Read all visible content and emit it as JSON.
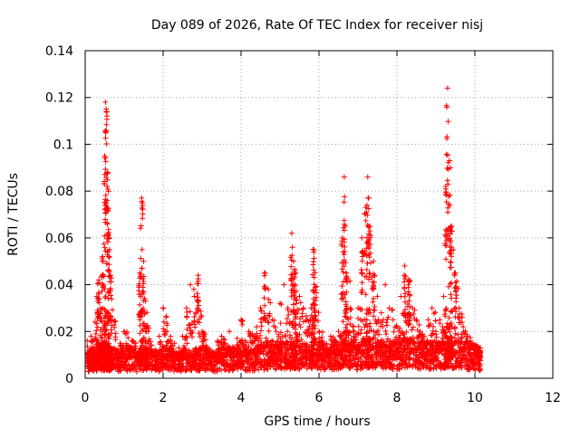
{
  "chart_data": {
    "type": "scatter",
    "title": "Day 089 of 2026, Rate Of TEC Index for receiver nisj",
    "xlabel": "GPS time / hours",
    "ylabel": "ROTI / TECUs",
    "xlim": [
      0,
      12
    ],
    "ylim": [
      0,
      0.14
    ],
    "xticks": [
      0,
      2,
      4,
      6,
      8,
      10,
      12
    ],
    "xtick_labels": [
      "0",
      "2",
      "4",
      "6",
      "8",
      "10",
      "12"
    ],
    "yticks": [
      0,
      0.02,
      0.04,
      0.06,
      0.08,
      0.1,
      0.12,
      0.14
    ],
    "ytick_labels": [
      "0",
      "0.02",
      "0.04",
      "0.06",
      "0.08",
      "0.1",
      "0.12",
      "0.14"
    ],
    "grid": true,
    "marker": "+",
    "color": "#ff0000",
    "series": [
      {
        "name": "ROTI",
        "x": [
          0.05,
          0.1,
          0.15,
          0.2,
          0.25,
          0.3,
          0.35,
          0.4,
          0.45,
          0.5,
          0.52,
          0.55,
          0.58,
          0.6,
          0.65,
          0.7,
          0.8,
          0.9,
          1.0,
          1.1,
          1.2,
          1.3,
          1.4,
          1.45,
          1.5,
          1.55,
          1.6,
          1.7,
          1.8,
          1.9,
          2.0,
          2.1,
          2.2,
          2.3,
          2.4,
          2.5,
          2.6,
          2.7,
          2.8,
          2.9,
          3.0,
          3.1,
          3.2,
          3.3,
          3.4,
          3.5,
          3.6,
          3.7,
          3.8,
          3.9,
          4.0,
          4.1,
          4.2,
          4.3,
          4.4,
          4.5,
          4.6,
          4.7,
          4.8,
          4.9,
          5.0,
          5.1,
          5.2,
          5.3,
          5.35,
          5.4,
          5.5,
          5.6,
          5.7,
          5.8,
          5.85,
          5.9,
          6.0,
          6.1,
          6.2,
          6.3,
          6.4,
          6.5,
          6.6,
          6.65,
          6.7,
          6.8,
          6.9,
          7.0,
          7.1,
          7.2,
          7.25,
          7.3,
          7.4,
          7.5,
          7.6,
          7.7,
          7.8,
          7.9,
          8.0,
          8.1,
          8.2,
          8.3,
          8.4,
          8.5,
          8.6,
          8.7,
          8.8,
          8.9,
          9.0,
          9.1,
          9.2,
          9.25,
          9.3,
          9.35,
          9.4,
          9.5,
          9.6,
          9.7,
          9.8,
          9.9,
          10.0,
          10.1
        ],
        "y": [
          0.016,
          0.012,
          0.018,
          0.009,
          0.024,
          0.035,
          0.042,
          0.03,
          0.052,
          0.095,
          0.118,
          0.114,
          0.088,
          0.061,
          0.044,
          0.025,
          0.012,
          0.015,
          0.02,
          0.014,
          0.016,
          0.011,
          0.045,
          0.077,
          0.05,
          0.033,
          0.022,
          0.014,
          0.012,
          0.018,
          0.03,
          0.02,
          0.015,
          0.011,
          0.013,
          0.018,
          0.03,
          0.04,
          0.035,
          0.044,
          0.02,
          0.014,
          0.012,
          0.01,
          0.016,
          0.018,
          0.015,
          0.02,
          0.013,
          0.017,
          0.025,
          0.016,
          0.02,
          0.018,
          0.022,
          0.03,
          0.045,
          0.038,
          0.025,
          0.02,
          0.032,
          0.04,
          0.03,
          0.062,
          0.05,
          0.045,
          0.035,
          0.03,
          0.025,
          0.03,
          0.055,
          0.045,
          0.02,
          0.015,
          0.012,
          0.018,
          0.016,
          0.02,
          0.06,
          0.086,
          0.045,
          0.03,
          0.02,
          0.03,
          0.06,
          0.073,
          0.086,
          0.065,
          0.05,
          0.035,
          0.028,
          0.04,
          0.03,
          0.025,
          0.022,
          0.035,
          0.048,
          0.042,
          0.03,
          0.025,
          0.02,
          0.018,
          0.025,
          0.03,
          0.02,
          0.025,
          0.035,
          0.082,
          0.124,
          0.093,
          0.065,
          0.045,
          0.03,
          0.022,
          0.018,
          0.015,
          0.014,
          0.012
        ],
        "baseline": [
          0.008,
          0.008,
          0.009,
          0.008,
          0.009,
          0.009,
          0.01,
          0.009,
          0.009,
          0.01,
          0.01,
          0.01,
          0.01,
          0.009,
          0.009,
          0.009,
          0.008,
          0.009,
          0.009,
          0.009,
          0.009,
          0.008,
          0.009,
          0.009,
          0.009,
          0.009,
          0.009,
          0.008,
          0.008,
          0.009,
          0.009,
          0.009,
          0.008,
          0.008,
          0.008,
          0.009,
          0.009,
          0.009,
          0.009,
          0.009,
          0.009,
          0.009,
          0.008,
          0.008,
          0.009,
          0.009,
          0.009,
          0.009,
          0.009,
          0.009,
          0.01,
          0.009,
          0.009,
          0.009,
          0.01,
          0.01,
          0.011,
          0.01,
          0.01,
          0.01,
          0.011,
          0.011,
          0.011,
          0.012,
          0.011,
          0.011,
          0.011,
          0.011,
          0.01,
          0.011,
          0.012,
          0.011,
          0.01,
          0.009,
          0.009,
          0.01,
          0.01,
          0.01,
          0.012,
          0.012,
          0.011,
          0.011,
          0.01,
          0.011,
          0.012,
          0.012,
          0.012,
          0.012,
          0.011,
          0.011,
          0.011,
          0.012,
          0.011,
          0.011,
          0.011,
          0.012,
          0.012,
          0.012,
          0.011,
          0.011,
          0.011,
          0.011,
          0.011,
          0.011,
          0.011,
          0.011,
          0.011,
          0.012,
          0.012,
          0.012,
          0.012,
          0.011,
          0.011,
          0.011,
          0.01,
          0.01,
          0.01,
          0.009
        ]
      }
    ]
  }
}
